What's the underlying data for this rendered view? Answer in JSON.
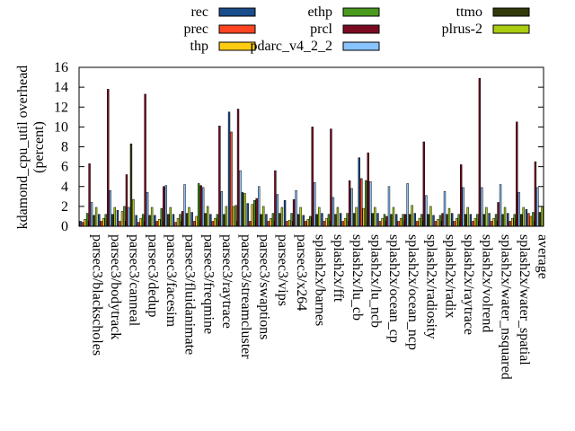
{
  "chart_data": {
    "type": "bar",
    "title": "",
    "xlabel": "",
    "ylabel": "kdamond_cpu_util overhead",
    "ylabel_sub": "(percent)",
    "ylim": [
      0,
      16
    ],
    "yticks": [
      0,
      2,
      4,
      6,
      8,
      10,
      12,
      14,
      16
    ],
    "grid": false,
    "legend_position": "top",
    "categories": [
      "parsec3/blackscholes",
      "parsec3/bodytrack",
      "parsec3/canneal",
      "parsec3/dedup",
      "parsec3/facesim",
      "parsec3/fluidanimate",
      "parsec3/freqmine",
      "parsec3/raytrace",
      "parsec3/streamcluster",
      "parsec3/swaptions",
      "parsec3/vips",
      "parsec3/x264",
      "splash2x/barnes",
      "splash2x/fft",
      "splash2x/lu_cb",
      "splash2x/lu_ncb",
      "splash2x/ocean_cp",
      "splash2x/ocean_ncp",
      "splash2x/radiosity",
      "splash2x/radix",
      "splash2x/raytrace",
      "splash2x/volrend",
      "splash2x/water_nsquared",
      "splash2x/water_spatial",
      "average"
    ],
    "series": [
      {
        "name": "rec",
        "color": "#1a4d8c",
        "values": [
          0.5,
          1.2,
          1.6,
          1.1,
          1.1,
          1.2,
          1.4,
          1.2,
          11.5,
          2.3,
          1.2,
          2.6,
          1.1,
          1.3,
          1.3,
          6.9,
          1.3,
          1.2,
          1.3,
          1.1,
          1.3,
          1.2,
          1.3,
          1.3,
          1.7
        ]
      },
      {
        "name": "prec",
        "color": "#ff4422",
        "values": [
          0.4,
          0.5,
          0.5,
          0.4,
          0.5,
          0.4,
          0.5,
          0.5,
          9.5,
          0.5,
          0.5,
          0.5,
          0.5,
          0.5,
          0.5,
          4.8,
          0.5,
          0.5,
          0.5,
          0.5,
          0.5,
          0.5,
          0.5,
          0.5,
          1.3
        ]
      },
      {
        "name": "thp",
        "color": "#ffcc11",
        "values": [
          0.7,
          0.8,
          1.5,
          0.8,
          0.7,
          0.8,
          1.0,
          0.8,
          2.0,
          2.2,
          0.8,
          0.6,
          0.7,
          0.8,
          0.8,
          1.8,
          0.8,
          0.8,
          0.8,
          0.7,
          0.8,
          0.8,
          0.8,
          0.8,
          1.0
        ]
      },
      {
        "name": "ethp",
        "color": "#4a9a1e",
        "values": [
          1.3,
          1.2,
          2.0,
          1.2,
          1.8,
          1.2,
          4.3,
          1.2,
          2.1,
          2.6,
          1.3,
          1.3,
          1.0,
          1.2,
          1.3,
          4.6,
          1.2,
          1.2,
          1.2,
          1.1,
          1.2,
          1.2,
          1.2,
          1.2,
          1.4
        ]
      },
      {
        "name": "prcl",
        "color": "#7a0a22",
        "values": [
          6.3,
          13.8,
          5.2,
          13.3,
          4.0,
          1.5,
          4.1,
          10.1,
          11.8,
          2.8,
          5.6,
          2.7,
          10.0,
          9.8,
          4.6,
          7.4,
          1.0,
          1.2,
          8.5,
          1.3,
          6.2,
          14.9,
          2.4,
          10.5,
          6.5
        ]
      },
      {
        "name": "pdarc_v4_2_2",
        "color": "#88c4ff",
        "values": [
          2.4,
          3.6,
          1.9,
          3.4,
          4.1,
          4.2,
          3.9,
          3.5,
          5.6,
          4.0,
          3.2,
          3.6,
          4.4,
          2.9,
          3.8,
          4.5,
          4.0,
          4.3,
          3.1,
          3.5,
          3.9,
          3.9,
          4.2,
          3.4,
          3.9
        ]
      },
      {
        "name": "ttmo",
        "color": "#333a0a",
        "values": [
          1.1,
          1.2,
          8.3,
          1.1,
          1.2,
          1.3,
          1.3,
          1.2,
          3.4,
          1.2,
          1.3,
          1.2,
          1.2,
          1.2,
          1.3,
          1.3,
          1.2,
          1.2,
          1.2,
          1.2,
          1.2,
          1.2,
          1.2,
          1.2,
          1.4
        ]
      },
      {
        "name": "plrus-2",
        "color": "#aacc11",
        "values": [
          1.9,
          1.9,
          2.7,
          1.9,
          1.9,
          1.9,
          2.0,
          2.0,
          3.3,
          2.0,
          1.9,
          1.9,
          1.9,
          1.9,
          1.9,
          1.9,
          1.9,
          2.1,
          2.0,
          1.8,
          1.9,
          1.9,
          1.9,
          1.9,
          2.0
        ]
      }
    ]
  }
}
